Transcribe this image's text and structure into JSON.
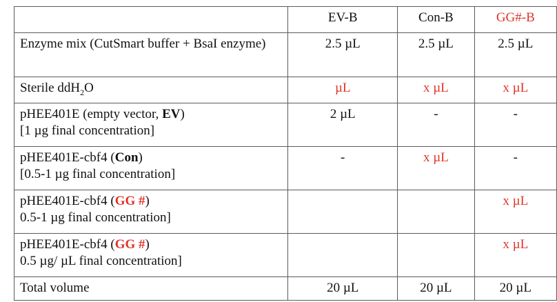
{
  "table": {
    "header": {
      "corner": "",
      "ev": "EV-B",
      "con": "Con-B",
      "gg": "GG#-B"
    },
    "rows": {
      "enzyme": {
        "label": "Enzyme mix (CutSmart buffer + BsaI enzyme)",
        "ev": "2.5 µL",
        "con": "2.5 µL",
        "gg": "2.5 µL"
      },
      "water": {
        "label_prefix": "Sterile ddH",
        "label_sub": "2",
        "label_suffix": "O",
        "ev": "µL",
        "con": "x µL",
        "gg": "x µL"
      },
      "empty_vector": {
        "label_prefix": "pHEE401E (empty vector, ",
        "label_bold": "EV",
        "label_suffix": ")",
        "label_line2": "[1 µg final concentration]",
        "ev": "2 µL",
        "con": "-",
        "gg": "-"
      },
      "con_plasmid": {
        "label_prefix": "pHEE401E-cbf4 (",
        "label_bold": "Con",
        "label_suffix": ")",
        "label_line2": "[0.5-1 µg final concentration]",
        "ev": "-",
        "con": "x µL",
        "gg": "-"
      },
      "gg_plasmid_1": {
        "label_prefix": "pHEE401E-cbf4 (",
        "label_bold": "GG #",
        "label_suffix": ")",
        "label_line2": "0.5-1 µg final concentration]",
        "ev": "",
        "con": "",
        "gg": "x µL"
      },
      "gg_plasmid_2": {
        "label_prefix": "pHEE401E-cbf4 (",
        "label_bold": "GG #",
        "label_suffix": ")",
        "label_line2": "0.5 µg/ µL final concentration]",
        "ev": "",
        "con": "",
        "gg": "x µL"
      },
      "total": {
        "label": "Total volume",
        "ev": "20 µL",
        "con": "20 µL",
        "gg": "20 µL"
      }
    }
  },
  "colors": {
    "accent_red": "#e0342a",
    "text": "#111111",
    "border": "#5a5a5a"
  }
}
